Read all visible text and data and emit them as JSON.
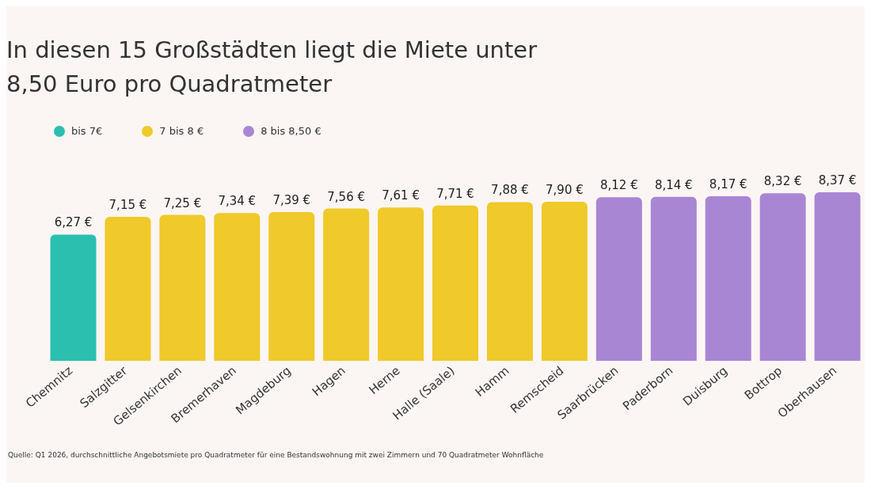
{
  "chart_data": {
    "type": "bar",
    "title": "In diesen 15 Großstädten liegt die Miete unter 8,50 Euro pro Quadratmeter",
    "categories": [
      "Chemnitz",
      "Salzgitter",
      "Gelsenkirchen",
      "Bremerhaven",
      "Magdeburg",
      "Hagen",
      "Herne",
      "Halle (Saale)",
      "Hamm",
      "Remscheid",
      "Saarbrücken",
      "Paderborn",
      "Duisburg",
      "Bottrop",
      "Oberhausen"
    ],
    "stacked": true,
    "legend": "top left",
    "series": [
      {
        "name": "bis 7€",
        "color": "#2bbfb0",
        "values": [
          6.27,
          null,
          null,
          null,
          null,
          null,
          null,
          null,
          null,
          null,
          null,
          null,
          null,
          null,
          null
        ],
        "value_labels": [
          "6,27 €",
          null,
          null,
          null,
          null,
          null,
          null,
          null,
          null,
          null,
          null,
          null,
          null,
          null,
          null
        ]
      },
      {
        "name": "7 bis 8 €",
        "color": "#f0c92a",
        "values": [
          null,
          7.15,
          7.25,
          7.34,
          7.39,
          7.56,
          7.61,
          7.71,
          7.88,
          7.9,
          null,
          null,
          null,
          null,
          null
        ],
        "value_labels": [
          null,
          "7,15 €",
          "7,25 €",
          "7,34 €",
          "7,39 €",
          "7,56 €",
          "7,61 €",
          "7,71 €",
          "7,88 €",
          "7,90 €",
          null,
          null,
          null,
          null,
          null
        ]
      },
      {
        "name": "8 bis 8,50 €",
        "color": "#a986d4",
        "values": [
          null,
          null,
          null,
          null,
          null,
          null,
          null,
          null,
          null,
          null,
          8.12,
          8.14,
          8.17,
          8.32,
          8.37
        ],
        "value_labels": [
          null,
          null,
          null,
          null,
          null,
          null,
          null,
          null,
          null,
          null,
          "8,12 €",
          "8,14 €",
          "8,17 €",
          "8,32 €",
          "8,37 €"
        ]
      }
    ],
    "annotations": [
      "Quelle: Q1 2026, durchschnittliche Angebotsmiete pro Quadratmeter für eine Bestandswohnung mit zwei Zimmern und 70 Quadratmeter Wohnfläche"
    ]
  }
}
